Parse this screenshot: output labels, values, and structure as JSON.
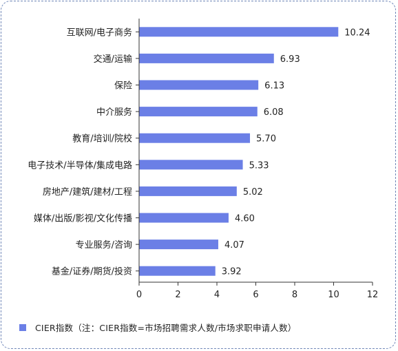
{
  "chart_data": {
    "type": "bar",
    "orientation": "horizontal",
    "categories": [
      "互联网/电子商务",
      "交通/运输",
      "保险",
      "中介服务",
      "教育/培训/院校",
      "电子技术/半导体/集成电路",
      "房地产/建筑/建材/工程",
      "媒体/出版/影视/文化传播",
      "专业服务/咨询",
      "基金/证券/期货/投资"
    ],
    "values": [
      10.24,
      6.93,
      6.13,
      6.08,
      5.7,
      5.33,
      5.02,
      4.6,
      4.07,
      3.92
    ],
    "value_labels": [
      "10.24",
      "6.93",
      "6.13",
      "6.08",
      "5.70",
      "5.33",
      "5.02",
      "4.60",
      "4.07",
      "3.92"
    ],
    "xlim": [
      0,
      12
    ],
    "xticks": [
      0,
      2,
      4,
      6,
      8,
      10,
      12
    ],
    "grid": false,
    "legend_position": "bottom-left",
    "series": [
      {
        "name": "CIER指数（注：CIER指数=市场招聘需求人数/市场求职申请人数）",
        "color": "#6b7fe6"
      }
    ]
  },
  "legend": {
    "label": "CIER指数（注：CIER指数=市场招聘需求人数/市场求职申请人数）",
    "color": "#6b7fe6"
  }
}
